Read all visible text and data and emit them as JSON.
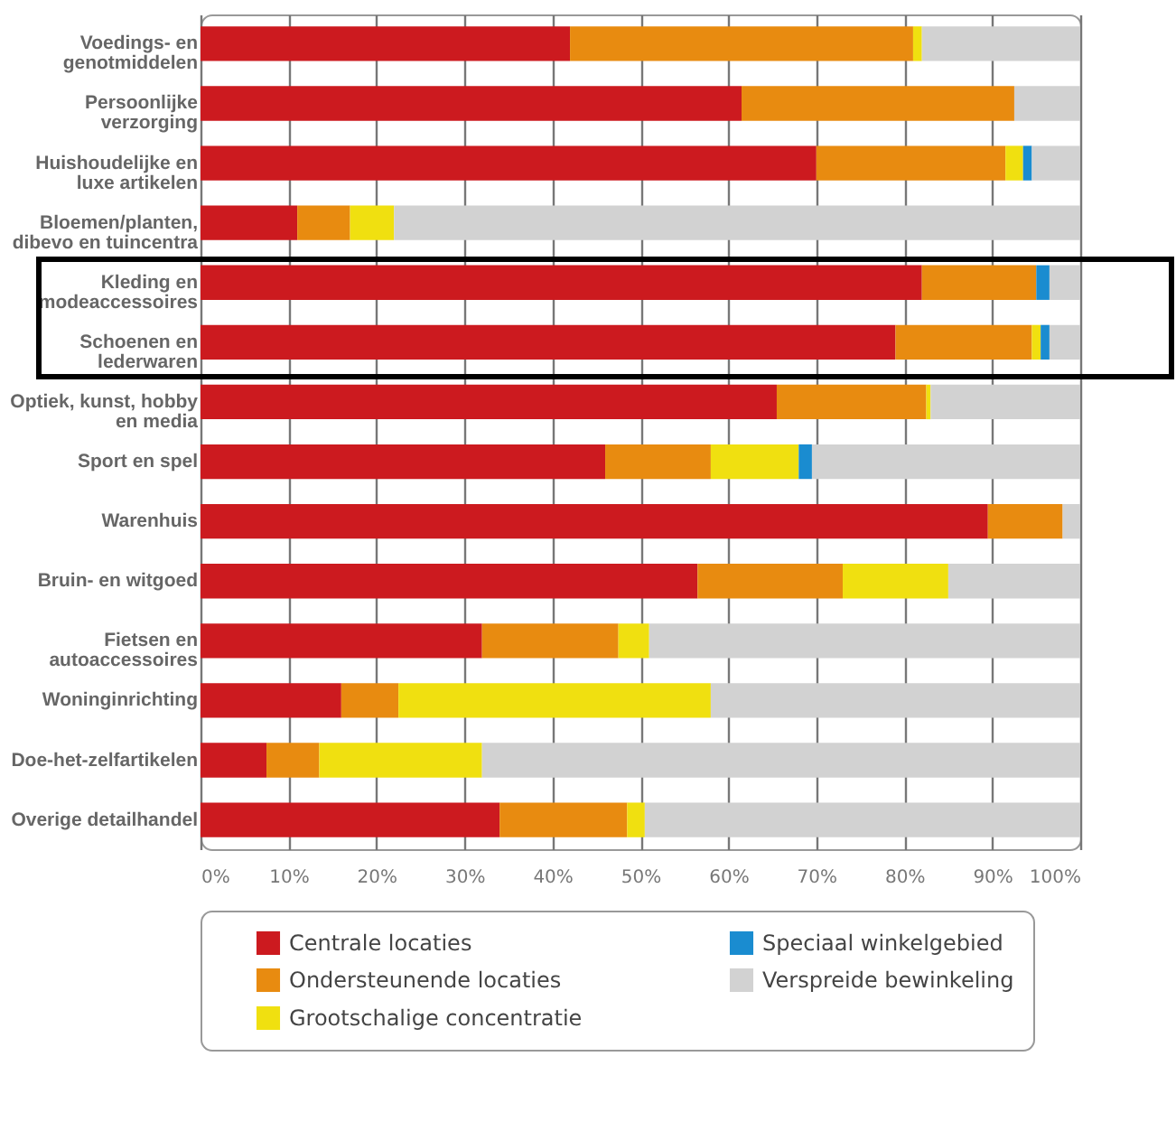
{
  "chart_data": {
    "type": "bar",
    "orientation": "horizontal",
    "stacked": true,
    "categories": [
      "Voedings- en genotmiddelen",
      "Persoonlijke verzorging",
      "Huishoudelijke en luxe artikelen",
      "Bloemen/planten, dibevo en tuincentra",
      "Kleding en modeaccessoires",
      "Schoenen en lederwaren",
      "Optiek, kunst, hobby en media",
      "Sport en spel",
      "Warenhuis",
      "Bruin- en witgoed",
      "Fietsen en autoaccessoires",
      "Woninginrichting",
      "Doe-het-zelfartikelen",
      "Overige detailhandel"
    ],
    "series": [
      {
        "name": "Centrale locaties",
        "color": "#cc1a1f",
        "values": [
          42,
          61.5,
          70,
          11,
          82,
          79,
          65.5,
          46,
          89.5,
          56.5,
          32,
          16,
          7.5,
          34
        ]
      },
      {
        "name": "Ondersteunende locaties",
        "color": "#e88b10",
        "values": [
          39,
          31,
          21.5,
          6,
          13,
          15.5,
          17,
          12,
          8.5,
          16.5,
          15.5,
          6.5,
          6,
          14.5
        ]
      },
      {
        "name": "Grootschalige concentratie",
        "color": "#f0e010",
        "values": [
          1,
          0,
          2,
          5,
          0,
          1,
          0.5,
          10,
          0,
          12,
          3.5,
          35.5,
          18.5,
          2
        ]
      },
      {
        "name": "Speciaal winkelgebied",
        "color": "#1a8cd0",
        "values": [
          0,
          0,
          1,
          0,
          1.5,
          1,
          0,
          1.5,
          0,
          0,
          0,
          0,
          0,
          0
        ]
      },
      {
        "name": "Verspreide bewinkeling",
        "color": "#d2d2d2",
        "values": [
          18,
          7.5,
          5.5,
          78,
          3.5,
          3.5,
          17,
          30.5,
          2,
          15,
          49,
          42,
          68,
          49.5
        ]
      }
    ],
    "xlim": [
      0,
      100
    ],
    "xticks": [
      {
        "value": 0,
        "label": "0%"
      },
      {
        "value": 10,
        "label": "10%"
      },
      {
        "value": 20,
        "label": "20%"
      },
      {
        "value": 30,
        "label": "30%"
      },
      {
        "value": 40,
        "label": "40%"
      },
      {
        "value": 50,
        "label": "50%"
      },
      {
        "value": 60,
        "label": "60%"
      },
      {
        "value": 70,
        "label": "70%"
      },
      {
        "value": 80,
        "label": "80%"
      },
      {
        "value": 90,
        "label": "90%"
      },
      {
        "value": 100,
        "label": "100%"
      }
    ],
    "grid": "x",
    "legend": "bottom"
  }
}
